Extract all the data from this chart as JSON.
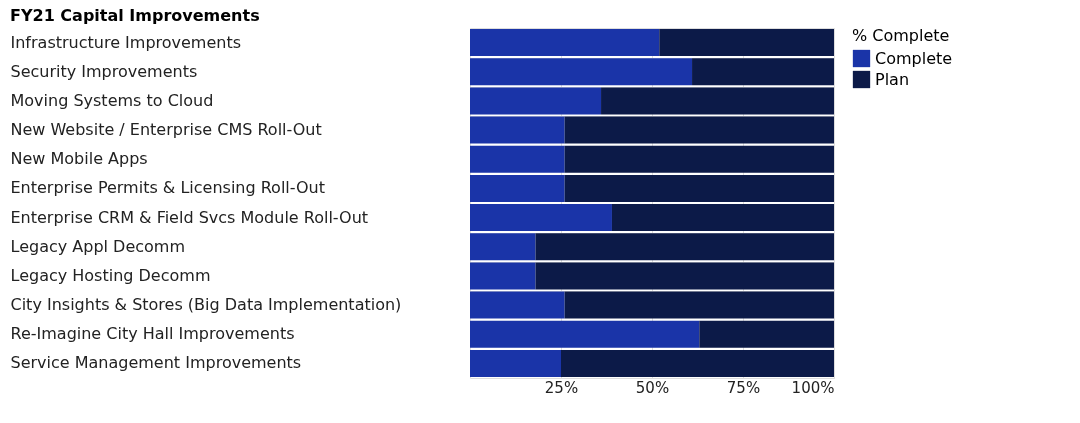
{
  "chart_data": {
    "type": "bar",
    "orientation": "horizontal",
    "stacked": true,
    "title": "FY21 Capital Improvements",
    "legend_title": "% Complete",
    "legend": "right",
    "grid": true,
    "categories": [
      "Infrastructure Improvements",
      "Security Improvements",
      "Moving Systems to Cloud",
      "New Website / Enterprise CMS Roll-Out",
      "New Mobile Apps",
      "Enterprise Permits & Licensing Roll-Out",
      "Enterprise CRM & Field Svcs Module Roll-Out",
      "Legacy Appl Decomm",
      "Legacy Hosting Decomm",
      "City Insights & Stores (Big Data Implementation)",
      "Re-Imagine City Hall Improvements",
      "Service Management Improvements"
    ],
    "series": [
      {
        "name": "Complete",
        "color": "#1a34a8",
        "values": [
          52,
          61,
          36,
          26,
          26,
          26,
          39,
          18,
          18,
          26,
          63,
          25
        ]
      },
      {
        "name": "Plan",
        "color": "#0c1a48",
        "values": [
          48,
          39,
          64,
          74,
          74,
          74,
          61,
          82,
          82,
          74,
          37,
          75
        ]
      }
    ],
    "xlim": [
      0,
      100
    ],
    "xticks": [
      {
        "value": 25,
        "label": "25%"
      },
      {
        "value": 50,
        "label": "50%"
      },
      {
        "value": 75,
        "label": "75%"
      },
      {
        "value": 100,
        "label": "100%"
      }
    ]
  }
}
